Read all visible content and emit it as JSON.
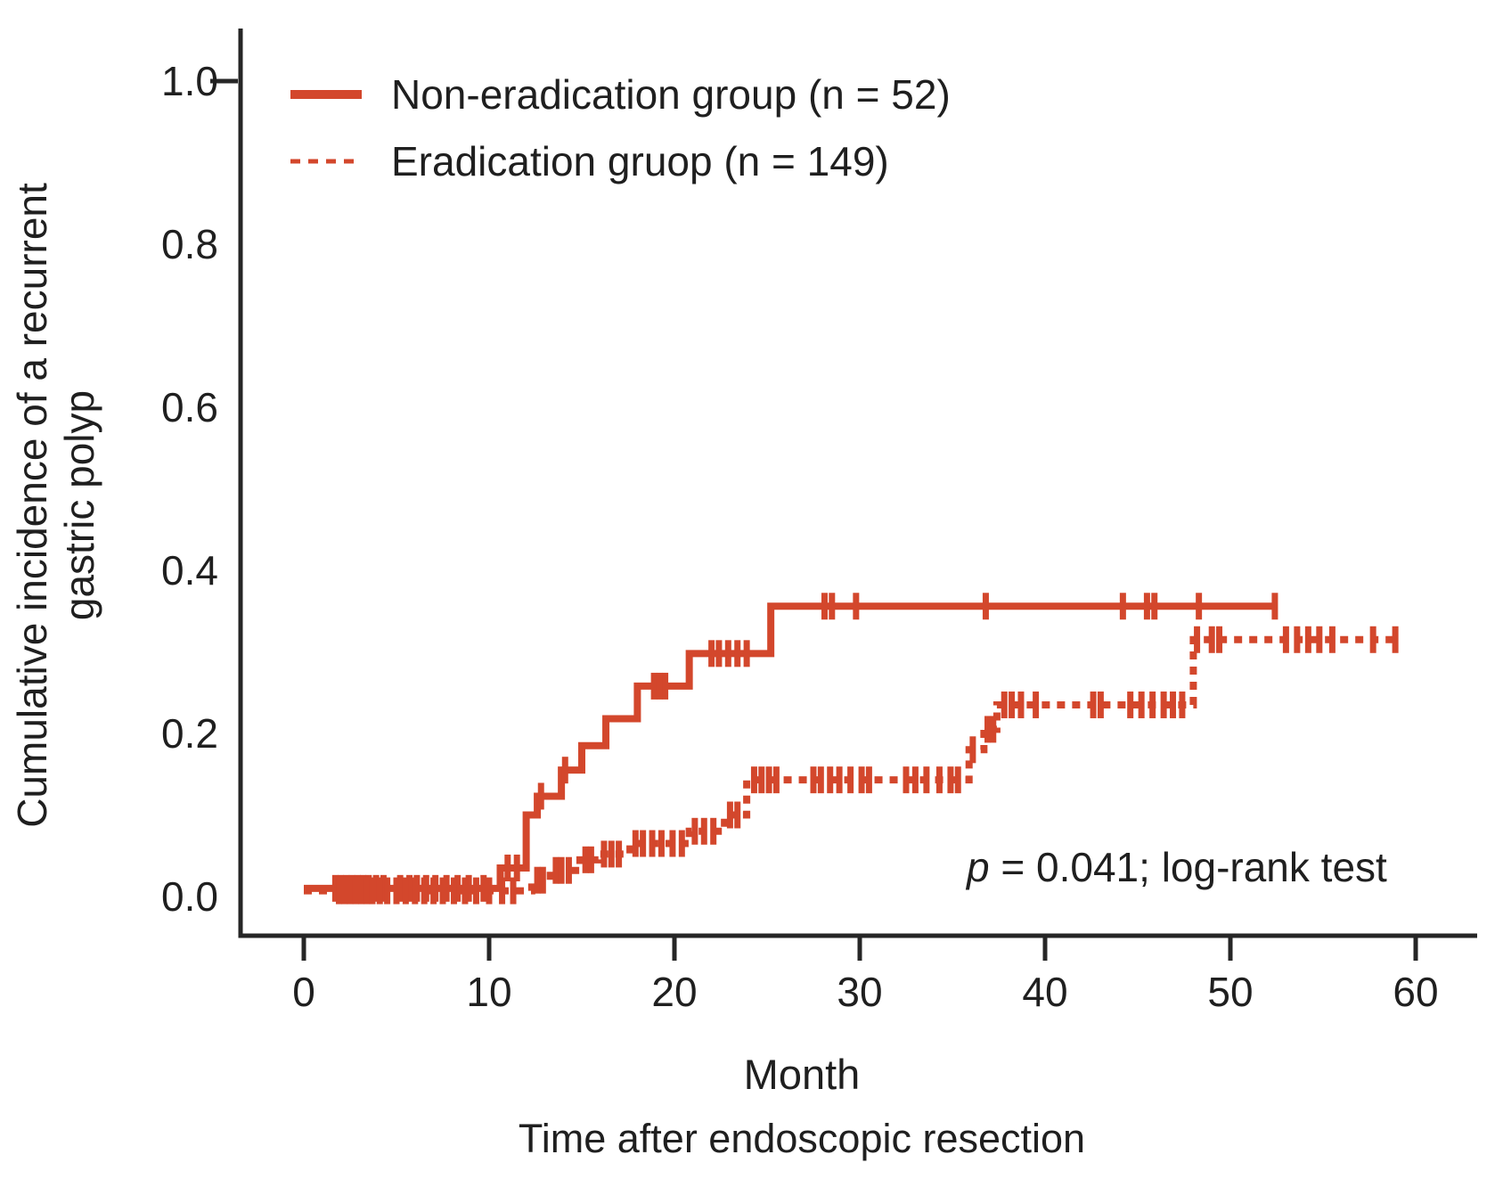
{
  "figure": {
    "legend": {
      "items": [
        {
          "label": "Non-eradication group (n = 52)",
          "line_style": "solid"
        },
        {
          "label": "Eradication gruop (n = 149)",
          "line_style": "dashed"
        }
      ]
    },
    "annotation": {
      "p_italic": "p",
      "text": " = 0.041; log-rank test"
    },
    "y_axis": {
      "title_line1": "Cumulative incidence of a recurrent",
      "title_line2": "gastric polyp",
      "tick_labels": [
        "0.0",
        "0.2",
        "0.4",
        "0.6",
        "0.8",
        "1.0"
      ]
    },
    "x_axis": {
      "title": "Month",
      "subtitle": "Time after endoscopic resection",
      "tick_labels": [
        "0",
        "10",
        "20",
        "30",
        "40",
        "50",
        "60"
      ]
    }
  },
  "colors": {
    "curve": "#d3472c",
    "text": "#1f1f1f",
    "axis": "#262626"
  },
  "chart_data": {
    "type": "line",
    "chart_style": "kaplan-meier-cumulative-incidence-step",
    "title": "",
    "xlabel": "Month",
    "x_sublabel": "Time after endoscopic resection",
    "ylabel": "Cumulative incidence of a recurrent gastric polyp",
    "x_ticks": [
      0,
      10,
      20,
      30,
      40,
      50,
      60
    ],
    "y_ticks": [
      0.0,
      0.2,
      0.4,
      0.6,
      0.8,
      1.0
    ],
    "xlim": [
      0,
      60
    ],
    "ylim": [
      0,
      1.05
    ],
    "grid": false,
    "legend_position": "top-left-inside",
    "p_value_annotation": "p = 0.041; log-rank test",
    "series": [
      {
        "name": "Non-eradication group (n = 52)",
        "n": 52,
        "line_style": "solid",
        "color": "#d3472c",
        "end_month": 52.5,
        "steps": [
          [
            0,
            0.01
          ],
          [
            10.6,
            0.035
          ],
          [
            12.0,
            0.1
          ],
          [
            12.6,
            0.123
          ],
          [
            13.9,
            0.155
          ],
          [
            15.0,
            0.185
          ],
          [
            16.3,
            0.218
          ],
          [
            18.0,
            0.258
          ],
          [
            20.8,
            0.298
          ],
          [
            25.2,
            0.356
          ]
        ],
        "censor_marks": [
          [
            1.7,
            0.01
          ],
          [
            2.0,
            0.01
          ],
          [
            2.3,
            0.01
          ],
          [
            2.6,
            0.01
          ],
          [
            2.9,
            0.01
          ],
          [
            3.2,
            0.01
          ],
          [
            3.5,
            0.01
          ],
          [
            3.9,
            0.01
          ],
          [
            4.3,
            0.01
          ],
          [
            5.2,
            0.01
          ],
          [
            5.7,
            0.01
          ],
          [
            6.1,
            0.01
          ],
          [
            6.6,
            0.01
          ],
          [
            7.1,
            0.01
          ],
          [
            7.7,
            0.01
          ],
          [
            8.3,
            0.01
          ],
          [
            8.9,
            0.01
          ],
          [
            9.7,
            0.01
          ],
          [
            11.0,
            0.035
          ],
          [
            11.5,
            0.035
          ],
          [
            12.8,
            0.123
          ],
          [
            14.1,
            0.155
          ],
          [
            18.9,
            0.258
          ],
          [
            19.2,
            0.258
          ],
          [
            19.5,
            0.258
          ],
          [
            22.0,
            0.298
          ],
          [
            22.4,
            0.298
          ],
          [
            22.9,
            0.298
          ],
          [
            23.4,
            0.298
          ],
          [
            23.9,
            0.298
          ],
          [
            28.1,
            0.356
          ],
          [
            28.5,
            0.356
          ],
          [
            29.8,
            0.356
          ],
          [
            36.8,
            0.356
          ],
          [
            44.2,
            0.356
          ],
          [
            45.5,
            0.356
          ],
          [
            45.9,
            0.356
          ],
          [
            48.3,
            0.356
          ],
          [
            52.4,
            0.356
          ]
        ]
      },
      {
        "name": "Eradication gruop (n = 149)",
        "n": 149,
        "line_style": "dashed",
        "color": "#d3472c",
        "end_month": 59.0,
        "steps": [
          [
            0,
            0.007
          ],
          [
            12.3,
            0.02
          ],
          [
            13.3,
            0.032
          ],
          [
            14.9,
            0.045
          ],
          [
            15.9,
            0.052
          ],
          [
            17.6,
            0.065
          ],
          [
            20.8,
            0.08
          ],
          [
            22.7,
            0.1
          ],
          [
            23.9,
            0.143
          ],
          [
            35.9,
            0.18
          ],
          [
            36.7,
            0.205
          ],
          [
            37.4,
            0.235
          ],
          [
            48.0,
            0.315
          ]
        ],
        "censor_marks": [
          [
            1.9,
            0.007
          ],
          [
            2.2,
            0.007
          ],
          [
            2.5,
            0.007
          ],
          [
            2.8,
            0.007
          ],
          [
            3.1,
            0.007
          ],
          [
            3.4,
            0.007
          ],
          [
            3.7,
            0.007
          ],
          [
            4.1,
            0.007
          ],
          [
            4.5,
            0.007
          ],
          [
            5.0,
            0.007
          ],
          [
            5.5,
            0.007
          ],
          [
            6.0,
            0.007
          ],
          [
            6.5,
            0.007
          ],
          [
            7.0,
            0.007
          ],
          [
            7.5,
            0.007
          ],
          [
            8.1,
            0.007
          ],
          [
            8.7,
            0.007
          ],
          [
            9.3,
            0.007
          ],
          [
            10.0,
            0.007
          ],
          [
            10.7,
            0.007
          ],
          [
            11.3,
            0.007
          ],
          [
            12.6,
            0.02
          ],
          [
            12.9,
            0.02
          ],
          [
            13.6,
            0.032
          ],
          [
            13.9,
            0.032
          ],
          [
            14.3,
            0.032
          ],
          [
            15.2,
            0.045
          ],
          [
            15.5,
            0.045
          ],
          [
            16.2,
            0.052
          ],
          [
            16.6,
            0.052
          ],
          [
            17.0,
            0.052
          ],
          [
            17.9,
            0.065
          ],
          [
            18.3,
            0.065
          ],
          [
            18.8,
            0.065
          ],
          [
            19.3,
            0.065
          ],
          [
            19.9,
            0.065
          ],
          [
            20.4,
            0.065
          ],
          [
            21.1,
            0.08
          ],
          [
            21.6,
            0.08
          ],
          [
            22.1,
            0.08
          ],
          [
            23.0,
            0.1
          ],
          [
            23.4,
            0.1
          ],
          [
            24.3,
            0.143
          ],
          [
            24.7,
            0.143
          ],
          [
            25.1,
            0.143
          ],
          [
            25.5,
            0.143
          ],
          [
            27.5,
            0.143
          ],
          [
            27.9,
            0.143
          ],
          [
            28.4,
            0.143
          ],
          [
            28.9,
            0.143
          ],
          [
            29.5,
            0.143
          ],
          [
            30.1,
            0.143
          ],
          [
            30.5,
            0.143
          ],
          [
            32.5,
            0.143
          ],
          [
            33.0,
            0.143
          ],
          [
            33.6,
            0.143
          ],
          [
            34.3,
            0.143
          ],
          [
            34.9,
            0.143
          ],
          [
            35.3,
            0.143
          ],
          [
            36.1,
            0.18
          ],
          [
            36.9,
            0.205
          ],
          [
            37.2,
            0.205
          ],
          [
            37.8,
            0.235
          ],
          [
            38.2,
            0.235
          ],
          [
            38.7,
            0.235
          ],
          [
            39.5,
            0.235
          ],
          [
            42.6,
            0.235
          ],
          [
            43.0,
            0.235
          ],
          [
            44.6,
            0.235
          ],
          [
            45.2,
            0.235
          ],
          [
            45.8,
            0.235
          ],
          [
            46.4,
            0.235
          ],
          [
            46.9,
            0.235
          ],
          [
            47.4,
            0.235
          ],
          [
            48.2,
            0.315
          ],
          [
            49.0,
            0.315
          ],
          [
            49.4,
            0.315
          ],
          [
            53.0,
            0.315
          ],
          [
            53.6,
            0.315
          ],
          [
            54.2,
            0.315
          ],
          [
            54.8,
            0.315
          ],
          [
            55.5,
            0.315
          ],
          [
            57.7,
            0.315
          ],
          [
            58.9,
            0.315
          ]
        ]
      }
    ]
  }
}
